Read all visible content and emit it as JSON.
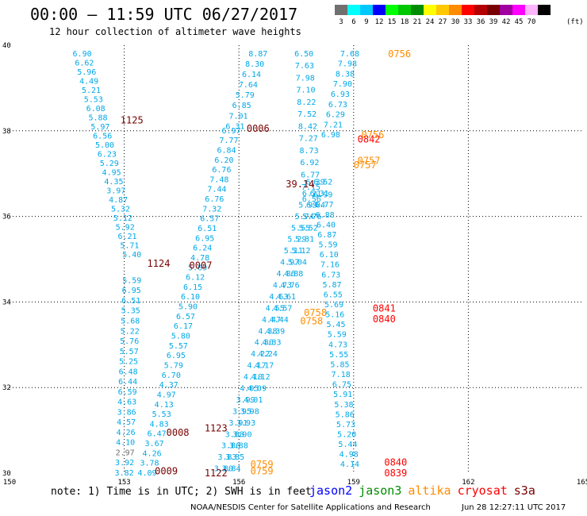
{
  "header": {
    "title": "00:00 – 11:59 UTC 06/27/2017",
    "subtitle": "12 hour collection of altimeter wave heights"
  },
  "legend": {
    "unit_label": "(ft)",
    "bins": [
      {
        "label": "3",
        "color": "#707070"
      },
      {
        "label": "6",
        "color": "#00ffff"
      },
      {
        "label": "9",
        "color": "#00c8ff"
      },
      {
        "label": "12",
        "color": "#0000ff"
      },
      {
        "label": "15",
        "color": "#00ff00"
      },
      {
        "label": "18",
        "color": "#00c800"
      },
      {
        "label": "21",
        "color": "#008c00"
      },
      {
        "label": "24",
        "color": "#ffff00"
      },
      {
        "label": "27",
        "color": "#ffc800"
      },
      {
        "label": "30",
        "color": "#ff8c00"
      },
      {
        "label": "33",
        "color": "#ff0000"
      },
      {
        "label": "36",
        "color": "#b40000"
      },
      {
        "label": "39",
        "color": "#780000"
      },
      {
        "label": "42",
        "color": "#a000a0"
      },
      {
        "label": "45",
        "color": "#ff00ff"
      },
      {
        "label": "70",
        "color": "#ffb4ff"
      },
      {
        "label": "",
        "color": "#000000"
      }
    ]
  },
  "footer": {
    "note": "note: 1) Time is in UTC; 2) SWH is in feet",
    "credit": "NOAA/NESDIS Center for Satellite Applications and Research",
    "timestamp": "Jun 28 12:27:11 UTC 2017",
    "satellites": [
      {
        "name": "jason2",
        "color": "#0000ff"
      },
      {
        "name": "jason3",
        "color": "#008c00"
      },
      {
        "name": "altika",
        "color": "#ff8c00"
      },
      {
        "name": "cryosat",
        "color": "#ff0000"
      },
      {
        "name": "s3a",
        "color": "#780000"
      }
    ]
  },
  "colors": {
    "swh": "#00a8e8",
    "swh_gray": "#707070",
    "grid": "#000000"
  },
  "chart_data": {
    "type": "scatter",
    "xlim": [
      150,
      165
    ],
    "ylim": [
      30,
      40
    ],
    "xticks": [
      150,
      153,
      156,
      159,
      162,
      165
    ],
    "yticks": [
      30,
      32,
      34,
      36,
      38,
      40
    ],
    "grid": true,
    "tracks": [
      {
        "name": "track-1125",
        "lon_start": 151.9,
        "lat_start": 39.8,
        "lon_end": 153.2,
        "lat_end": 35.1,
        "values": [
          "6.90",
          "6.62",
          "5.96",
          "4.49",
          "5.21",
          "5.53",
          "6.08",
          "5.88",
          "5.97",
          "6.56",
          "5.00",
          "6.23",
          "5.29",
          "4.95",
          "4.35",
          "3.97",
          "4.87",
          "5.32",
          "5.12",
          "5.92",
          "6.21",
          "5.71",
          "5.40"
        ]
      },
      {
        "name": "track-1124",
        "lon_start": 153.2,
        "lat_start": 34.5,
        "lon_end": 153.0,
        "lat_end": 30.0,
        "values": [
          "5.59",
          "6.95",
          "6.51",
          "5.35",
          "5.68",
          "5.22",
          "5.76",
          "5.57",
          "5.25",
          "6.48",
          "6.44",
          "6.59",
          "4.63",
          "3.86",
          "4.57",
          "4.26",
          "4.10",
          "2.97",
          "3.92",
          "3.82"
        ]
      },
      {
        "name": "track-0007",
        "lon_start": 155.8,
        "lat_start": 38.0,
        "lon_end": 153.6,
        "lat_end": 30.0,
        "values": [
          "6.97",
          "7.77",
          "6.84",
          "6.20",
          "6.76",
          "7.48",
          "7.44",
          "6.76",
          "7.32",
          "6.57",
          "6.51",
          "6.95",
          "6.24",
          "4.78",
          "5.69",
          "6.12",
          "6.15",
          "6.10",
          "5.90",
          "6.57",
          "6.17",
          "5.80",
          "5.57",
          "6.95",
          "5.79",
          "6.70",
          "4.37",
          "4.97",
          "4.13",
          "5.53",
          "4.83",
          "6.47",
          "3.67",
          "4.26",
          "3.78",
          "4.09"
        ]
      },
      {
        "name": "track-0006",
        "lon_start": 156.5,
        "lat_start": 39.8,
        "lon_end": 155.9,
        "lat_end": 38.1,
        "values": [
          "8.87",
          "8.30",
          "6.14",
          "7.64",
          "5.79",
          "6.85",
          "7.01",
          "6.31"
        ]
      },
      {
        "name": "track-0842",
        "lon_start": 157.7,
        "lat_start": 39.8,
        "lon_end": 157.9,
        "lat_end": 36.4,
        "values": [
          "6.50",
          "7.63",
          "7.98",
          "7.10",
          "8.22",
          "7.52",
          "8.42",
          "7.27",
          "8.73",
          "6.92",
          "6.77",
          "7.15",
          "6.56"
        ]
      },
      {
        "name": "track-0756",
        "lon_start": 158.9,
        "lat_start": 39.8,
        "lon_end": 158.4,
        "lat_end": 37.9,
        "values": [
          "7.68",
          "7.98",
          "8.38",
          "7.90",
          "6.93",
          "6.73",
          "6.29",
          "7.21",
          "6.98"
        ]
      },
      {
        "name": "track-0840",
        "lon_start": 158.2,
        "lat_start": 36.5,
        "lon_end": 158.9,
        "lat_end": 30.2,
        "values": [
          "6.99",
          "6.77",
          "6.88",
          "6.40",
          "6.87",
          "5.59",
          "6.10",
          "7.16",
          "6.73",
          "5.87",
          "6.55",
          "5.69",
          "5.16",
          "5.45",
          "5.59",
          "4.73",
          "5.55",
          "5.85",
          "7.18",
          "6.75",
          "5.91",
          "5.38",
          "5.86",
          "5.73",
          "5.20",
          "5.44",
          "4.98",
          "4.14"
        ]
      },
      {
        "name": "track-0759",
        "lon_start": 158.2,
        "lat_start": 36.8,
        "lon_end": 155.8,
        "lat_end": 30.1,
        "values": [
          "6.52",
          "6.31",
          "6.04",
          "5.76",
          "5.52",
          "5.31",
          "5.12",
          "5.04",
          "4.88",
          "4.76",
          "4.61",
          "4.57",
          "4.44",
          "4.39",
          "4.33",
          "4.24",
          "4.17",
          "4.12",
          "4.09",
          "4.01",
          "3.98",
          "3.93",
          "3.90",
          "3.88",
          "3.85",
          "3.84"
        ]
      },
      {
        "name": "track-0758",
        "lon_start": 158.0,
        "lat_start": 36.8,
        "lon_end": 155.6,
        "lat_end": 30.1,
        "values": [
          "6.39",
          "6.21",
          "5.99",
          "5.74",
          "5.55",
          "5.29",
          "5.11",
          "4.97",
          "4.86",
          "4.73",
          "4.63",
          "4.55",
          "4.47",
          "4.38",
          "4.30",
          "4.22",
          "4.17",
          "4.10",
          "4.05",
          "3.99",
          "3.95",
          "3.91",
          "3.88",
          "3.86",
          "3.83",
          "3.80"
        ]
      }
    ],
    "time_labels": [
      {
        "text": "1125",
        "lon": 153.2,
        "lat": 38.25,
        "color": "#780000"
      },
      {
        "text": "0006",
        "lon": 156.5,
        "lat": 38.05,
        "color": "#780000"
      },
      {
        "text": "0842",
        "lon": 159.4,
        "lat": 37.8,
        "color": "#ff0000"
      },
      {
        "text": "0756",
        "lon": 159.5,
        "lat": 37.9,
        "color": "#ff8c00"
      },
      {
        "text": "0756",
        "lon": 160.2,
        "lat": 39.8,
        "color": "#ff8c00"
      },
      {
        "text": "0757",
        "lon": 159.4,
        "lat": 37.3,
        "color": "#ff8c00"
      },
      {
        "text": "0757",
        "lon": 159.3,
        "lat": 37.2,
        "color": "#ff8c00"
      },
      {
        "text": "0007",
        "lon": 155.0,
        "lat": 34.85,
        "color": "#780000"
      },
      {
        "text": "1124",
        "lon": 153.9,
        "lat": 34.9,
        "color": "#780000"
      },
      {
        "text": "0758",
        "lon": 158.0,
        "lat": 33.75,
        "color": "#ff8c00"
      },
      {
        "text": "0758",
        "lon": 157.9,
        "lat": 33.55,
        "color": "#ff8c00"
      },
      {
        "text": "0841",
        "lon": 159.8,
        "lat": 33.85,
        "color": "#ff0000"
      },
      {
        "text": "0840",
        "lon": 159.8,
        "lat": 33.6,
        "color": "#ff0000"
      },
      {
        "text": "1123",
        "lon": 155.4,
        "lat": 31.05,
        "color": "#780000"
      },
      {
        "text": "0008",
        "lon": 154.4,
        "lat": 30.95,
        "color": "#780000"
      },
      {
        "text": "0009",
        "lon": 154.1,
        "lat": 30.05,
        "color": "#780000"
      },
      {
        "text": "1122",
        "lon": 155.4,
        "lat": 30.0,
        "color": "#780000"
      },
      {
        "text": "0759",
        "lon": 156.6,
        "lat": 30.2,
        "color": "#ff8c00"
      },
      {
        "text": "0759",
        "lon": 156.6,
        "lat": 30.05,
        "color": "#ff8c00"
      },
      {
        "text": "0840",
        "lon": 160.1,
        "lat": 30.25,
        "color": "#ff0000"
      },
      {
        "text": "0839",
        "lon": 160.1,
        "lat": 30.0,
        "color": "#ff0000"
      },
      {
        "text": "39.14",
        "lon": 157.6,
        "lat": 36.75,
        "color": "#780000"
      }
    ]
  }
}
